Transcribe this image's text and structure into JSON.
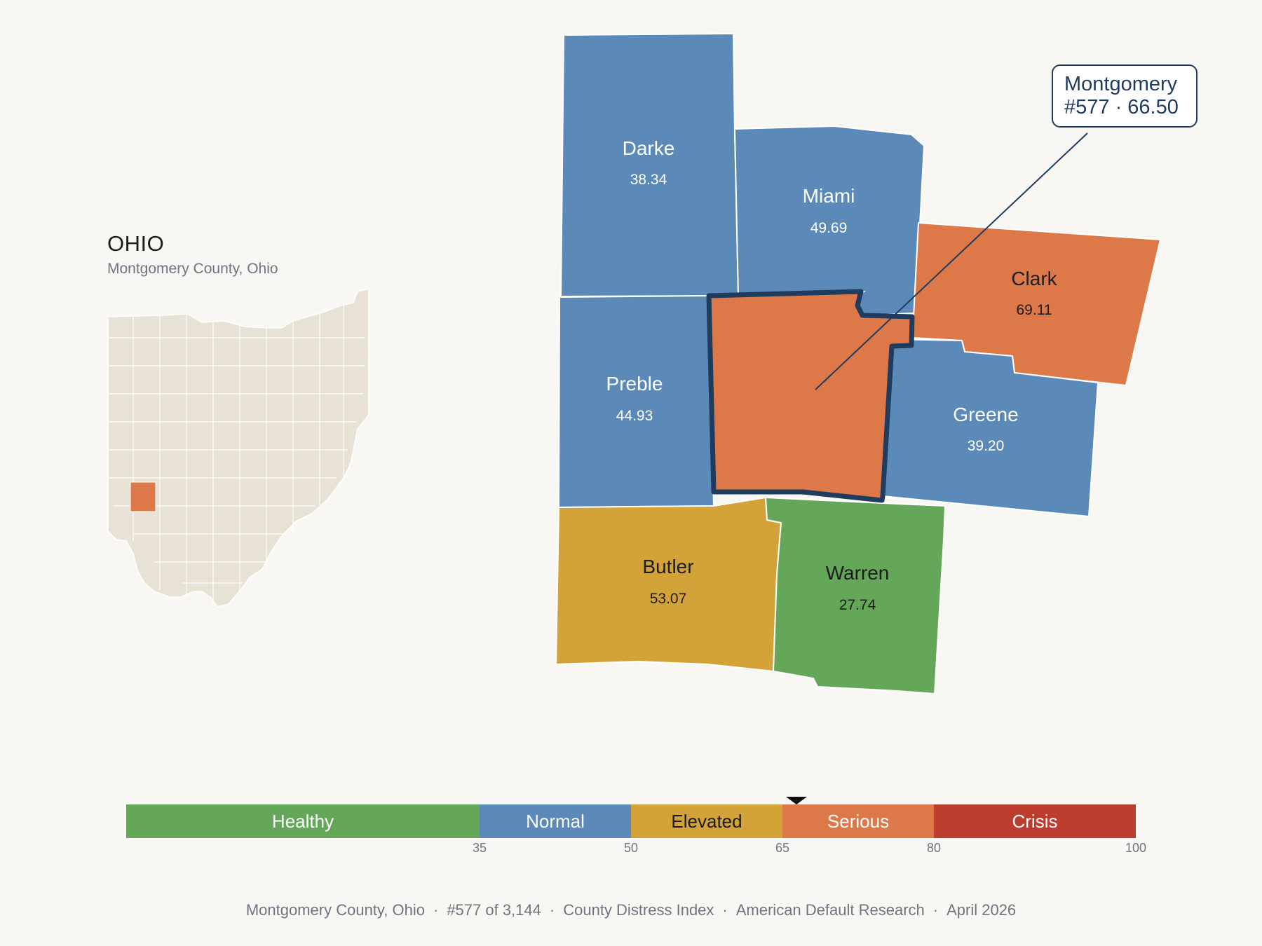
{
  "inset": {
    "title": "OHIO",
    "subtitle": "Montgomery County, Ohio"
  },
  "counties": [
    {
      "id": "darke",
      "name": "Darke",
      "value": "38.34",
      "category": "Normal"
    },
    {
      "id": "miami",
      "name": "Miami",
      "value": "49.69",
      "category": "Normal"
    },
    {
      "id": "clark",
      "name": "Clark",
      "value": "69.11",
      "category": "Serious"
    },
    {
      "id": "preble",
      "name": "Preble",
      "value": "44.93",
      "category": "Normal"
    },
    {
      "id": "greene",
      "name": "Greene",
      "value": "39.20",
      "category": "Normal"
    },
    {
      "id": "butler",
      "name": "Butler",
      "value": "53.07",
      "category": "Elevated"
    },
    {
      "id": "warren",
      "name": "Warren",
      "value": "27.74",
      "category": "Healthy"
    },
    {
      "id": "montgomery",
      "name": "Montgomery",
      "value": "66.50",
      "category": "Serious",
      "highlighted": true
    }
  ],
  "callout": {
    "line1": "Montgomery",
    "line2": "#577 · 66.50"
  },
  "legend": {
    "bands": [
      {
        "label": "Healthy",
        "from": 0,
        "to": 35,
        "color": "#65a758"
      },
      {
        "label": "Normal",
        "from": 35,
        "to": 50,
        "color": "#5b8ab9"
      },
      {
        "label": "Elevated",
        "from": 50,
        "to": 65,
        "color": "#d3a33a"
      },
      {
        "label": "Serious",
        "from": 65,
        "to": 80,
        "color": "#dd7849"
      },
      {
        "label": "Crisis",
        "from": 80,
        "to": 100,
        "color": "#bc3c2d"
      }
    ],
    "ticks": [
      "35",
      "50",
      "65",
      "80",
      "100"
    ],
    "marker_value": 66.5
  },
  "footer": {
    "county": "Montgomery County, Ohio",
    "rank": "#577 of 3,144",
    "index_name": "County Distress Index",
    "source": "American Default Research",
    "date": "April 2026"
  },
  "colors": {
    "background": "#f9f7f4",
    "state_fill": "#e8e2d6",
    "highlight_outline": "#1f3b5e"
  }
}
